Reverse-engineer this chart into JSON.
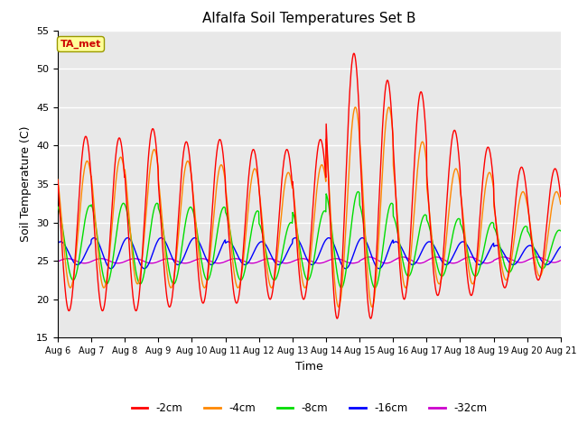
{
  "title": "Alfalfa Soil Temperatures Set B",
  "xlabel": "Time",
  "ylabel": "Soil Temperature (C)",
  "ylim": [
    15,
    55
  ],
  "bg_color": "#e8e8e8",
  "grid_color": "white",
  "series_colors": {
    "-2cm": "#ff0000",
    "-4cm": "#ff8800",
    "-8cm": "#00dd00",
    "-16cm": "#0000ff",
    "-32cm": "#cc00cc"
  },
  "annotation_text": "TA_met",
  "annotation_color": "#cc0000",
  "annotation_bg": "#ffff99",
  "x_tick_labels": [
    "Aug 6",
    "Aug 7",
    "Aug 8",
    "Aug 9",
    "Aug 10",
    "Aug 11",
    "Aug 12",
    "Aug 13",
    "Aug 14",
    "Aug 15",
    "Aug 16",
    "Aug 17",
    "Aug 18",
    "Aug 19",
    "Aug 20",
    "Aug 21"
  ],
  "num_days": 15,
  "day_maxes_2cm": [
    41.2,
    41.0,
    42.2,
    40.5,
    40.8,
    39.5,
    39.5,
    40.8,
    52.0,
    48.5,
    47.0,
    42.0,
    39.8,
    37.2,
    37.0
  ],
  "day_mins_2cm": [
    18.5,
    18.5,
    18.5,
    19.0,
    19.5,
    19.5,
    20.0,
    20.0,
    17.5,
    17.5,
    20.0,
    20.5,
    20.5,
    21.5,
    22.5
  ],
  "day_maxes_4cm": [
    38.0,
    38.5,
    39.5,
    38.0,
    37.5,
    37.0,
    36.5,
    37.5,
    45.0,
    45.0,
    40.5,
    37.0,
    36.5,
    34.0,
    34.0
  ],
  "day_mins_4cm": [
    21.5,
    21.5,
    22.0,
    21.5,
    21.5,
    21.5,
    21.5,
    21.5,
    19.0,
    19.0,
    21.5,
    22.0,
    22.0,
    22.5,
    23.0
  ],
  "day_maxes_8cm": [
    32.2,
    32.5,
    32.5,
    32.0,
    32.0,
    31.5,
    30.0,
    31.5,
    34.0,
    32.5,
    31.0,
    30.5,
    30.0,
    29.5,
    29.0
  ],
  "day_mins_8cm": [
    22.5,
    22.0,
    22.0,
    22.0,
    22.5,
    22.5,
    22.5,
    22.5,
    21.5,
    21.5,
    23.0,
    23.0,
    23.0,
    23.5,
    24.0
  ],
  "day_maxes_16cm": [
    27.5,
    28.0,
    28.0,
    28.0,
    28.0,
    27.5,
    27.5,
    28.0,
    28.0,
    28.0,
    27.5,
    27.5,
    27.5,
    27.0,
    27.0
  ],
  "day_mins_16cm": [
    24.5,
    24.0,
    24.0,
    24.5,
    24.5,
    24.5,
    24.5,
    24.5,
    24.0,
    24.0,
    24.5,
    24.5,
    24.5,
    24.5,
    24.5
  ],
  "day_maxes_32cm": [
    25.3,
    25.3,
    25.3,
    25.3,
    25.3,
    25.3,
    25.3,
    25.3,
    25.3,
    25.5,
    25.5,
    25.5,
    25.5,
    25.5,
    25.5
  ],
  "day_mins_32cm": [
    24.7,
    24.7,
    24.7,
    24.7,
    24.7,
    24.7,
    24.7,
    24.7,
    24.7,
    24.7,
    24.7,
    24.7,
    24.7,
    24.8,
    24.8
  ],
  "phase_2cm": 0.583,
  "phase_4cm": 0.625,
  "phase_8cm": 0.708,
  "phase_16cm": 0.833,
  "phase_32cm": 0.042
}
